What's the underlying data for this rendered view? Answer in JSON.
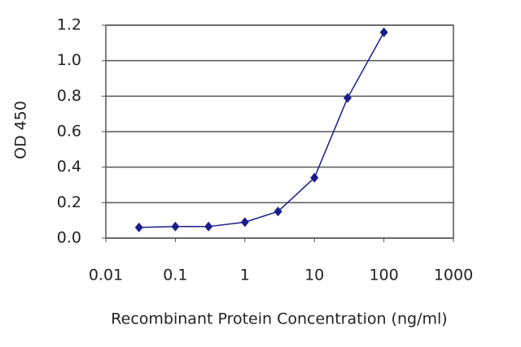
{
  "chart_data": {
    "type": "line",
    "x_label": "Recombinant Protein Concentration (ng/ml)",
    "y_label": "OD 450",
    "x": [
      0.03,
      0.1,
      0.3,
      1,
      3,
      10,
      30,
      100
    ],
    "series": [
      {
        "color": "#1c1c8a",
        "values": [
          0.06,
          0.065,
          0.065,
          0.09,
          0.15,
          0.34,
          0.79,
          1.16
        ]
      }
    ],
    "xscale": "log",
    "xlim": [
      0.01,
      1000
    ],
    "xticks": [
      0.01,
      0.1,
      1,
      10,
      100,
      1000
    ],
    "ylim": [
      0,
      1.2
    ],
    "yticks": [
      {
        "value": 0,
        "label": "0.0"
      },
      0.2,
      0.4,
      0.6,
      0.8,
      {
        "value": 1,
        "label": "1.0"
      },
      1.2
    ],
    "grid": true
  }
}
